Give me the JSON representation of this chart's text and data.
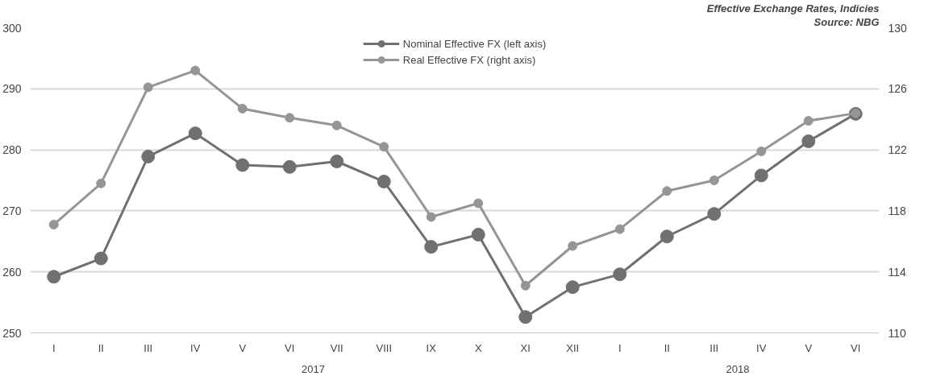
{
  "chart_data": {
    "type": "line",
    "title": "Effective Exchange Rates, Indicies",
    "subtitle": "Source: NBG",
    "categories": [
      "I",
      "II",
      "III",
      "IV",
      "V",
      "VI",
      "VII",
      "VIII",
      "IX",
      "X",
      "XI",
      "XII",
      "I",
      "II",
      "III",
      "IV",
      "V",
      "VI"
    ],
    "series": [
      {
        "name": "Nominal Effective FX (left axis)",
        "color": "#707070",
        "values": [
          259.2,
          262.2,
          278.9,
          282.7,
          277.5,
          277.2,
          278.1,
          274.8,
          264.1,
          266.1,
          252.6,
          257.5,
          259.6,
          265.8,
          269.5,
          275.8,
          281.4,
          285.9
        ]
      },
      {
        "name": "Real Effective FX (right axis)",
        "color": "#959595",
        "axis": "y2",
        "values": [
          117.1,
          119.8,
          126.1,
          127.2,
          124.7,
          124.1,
          123.6,
          122.2,
          117.6,
          118.5,
          113.1,
          115.7,
          116.8,
          119.3,
          120.0,
          121.9,
          123.9,
          124.4
        ]
      }
    ],
    "annotations": [
      "2017",
      "2018"
    ],
    "ylim": [
      250,
      300
    ],
    "yticks": [
      250,
      260,
      270,
      280,
      290,
      300
    ],
    "y2lim": [
      110,
      130
    ],
    "y2ticks": [
      110,
      114,
      118,
      122,
      126,
      130
    ],
    "grid": "y",
    "legend": "top",
    "marker": "circle",
    "line_style": "solid"
  }
}
